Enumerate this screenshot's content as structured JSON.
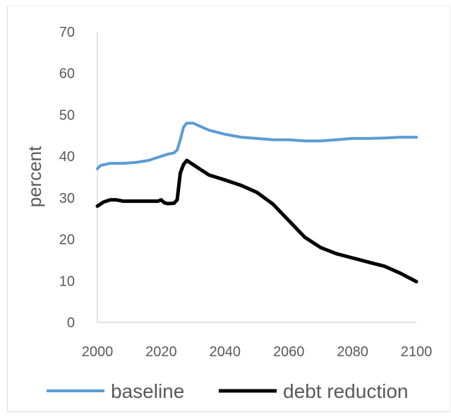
{
  "chart_data": {
    "type": "line",
    "title": "",
    "xlabel": "",
    "ylabel": "percent",
    "xlim": [
      2000,
      2100
    ],
    "ylim": [
      0,
      70
    ],
    "x_ticks": [
      2000,
      2020,
      2040,
      2060,
      2080,
      2100
    ],
    "y_ticks": [
      0,
      10,
      20,
      30,
      40,
      50,
      60,
      70
    ],
    "grid": false,
    "legend_position": "bottom",
    "series": [
      {
        "name": "baseline",
        "color": "#5b9bd5",
        "points": [
          [
            2000,
            37
          ],
          [
            2001,
            37.8
          ],
          [
            2004,
            38.3
          ],
          [
            2008,
            38.3
          ],
          [
            2012,
            38.5
          ],
          [
            2016,
            39
          ],
          [
            2020,
            40
          ],
          [
            2022,
            40.5
          ],
          [
            2024,
            40.8
          ],
          [
            2025,
            41.5
          ],
          [
            2026,
            44
          ],
          [
            2027,
            47
          ],
          [
            2028,
            48
          ],
          [
            2030,
            48
          ],
          [
            2032,
            47.3
          ],
          [
            2035,
            46.3
          ],
          [
            2040,
            45.3
          ],
          [
            2045,
            44.6
          ],
          [
            2050,
            44.3
          ],
          [
            2055,
            44
          ],
          [
            2060,
            44
          ],
          [
            2065,
            43.7
          ],
          [
            2070,
            43.7
          ],
          [
            2075,
            44
          ],
          [
            2080,
            44.3
          ],
          [
            2085,
            44.3
          ],
          [
            2090,
            44.4
          ],
          [
            2095,
            44.6
          ],
          [
            2100,
            44.6
          ]
        ]
      },
      {
        "name": "debt reduction",
        "color": "#000000",
        "points": [
          [
            2000,
            28
          ],
          [
            2002,
            29
          ],
          [
            2004,
            29.5
          ],
          [
            2006,
            29.5
          ],
          [
            2008,
            29.2
          ],
          [
            2012,
            29.2
          ],
          [
            2016,
            29.2
          ],
          [
            2019,
            29.2
          ],
          [
            2020,
            29.5
          ],
          [
            2021,
            28.8
          ],
          [
            2022,
            28.6
          ],
          [
            2024,
            28.7
          ],
          [
            2025,
            29.5
          ],
          [
            2026,
            36
          ],
          [
            2027,
            38
          ],
          [
            2028,
            39
          ],
          [
            2030,
            38
          ],
          [
            2032,
            37
          ],
          [
            2035,
            35.5
          ],
          [
            2040,
            34.3
          ],
          [
            2045,
            33
          ],
          [
            2050,
            31.3
          ],
          [
            2055,
            28.5
          ],
          [
            2060,
            24.5
          ],
          [
            2065,
            20.5
          ],
          [
            2070,
            18
          ],
          [
            2075,
            16.5
          ],
          [
            2080,
            15.5
          ],
          [
            2085,
            14.5
          ],
          [
            2090,
            13.5
          ],
          [
            2095,
            11.8
          ],
          [
            2100,
            9.8
          ]
        ]
      }
    ]
  }
}
